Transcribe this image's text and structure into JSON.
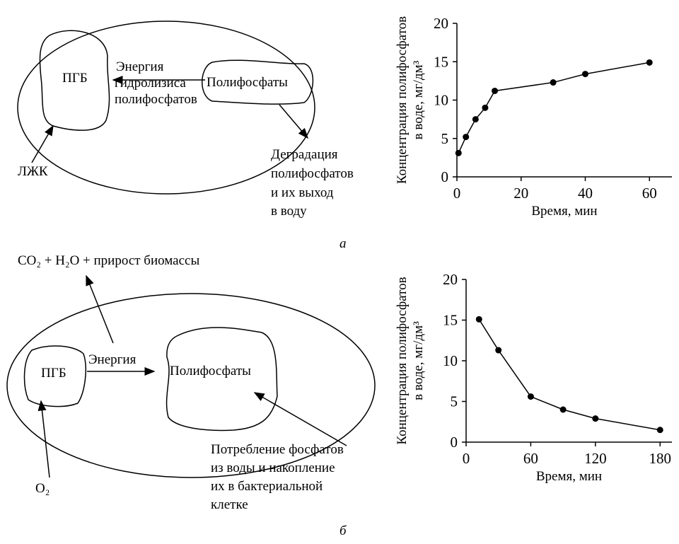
{
  "chart_data": [
    {
      "type": "line",
      "ylabel": [
        "Концентрация полифосфатов",
        "в воде, мг/дм³"
      ],
      "xlabel": "Время, мин",
      "x": [
        0.5,
        2.8,
        5.8,
        8.8,
        11.8,
        30,
        40,
        60
      ],
      "values": [
        3.1,
        5.2,
        7.5,
        9.0,
        11.2,
        12.3,
        13.4,
        14.9
      ],
      "xlim": [
        0,
        67
      ],
      "ylim": [
        0,
        20
      ],
      "xticks": [
        0,
        20,
        40,
        60
      ],
      "yticks": [
        0,
        5,
        10,
        15,
        20
      ],
      "color": "#000000"
    },
    {
      "type": "line",
      "ylabel": [
        "Концентрация полифосфатов",
        "в воде, мг/дм³"
      ],
      "xlabel": "Время, мин",
      "x": [
        12,
        30,
        60,
        90,
        120,
        180
      ],
      "values": [
        15.1,
        11.3,
        5.6,
        4.0,
        2.9,
        1.5
      ],
      "xlim": [
        0,
        191
      ],
      "ylim": [
        0,
        20
      ],
      "xticks": [
        0,
        60,
        120,
        180
      ],
      "yticks": [
        0,
        5,
        10,
        15,
        20
      ],
      "color": "#000000"
    }
  ],
  "diagram_a": {
    "pgb": "ПГБ",
    "energy": [
      "Энергия",
      "гидролизиса",
      "полифосфатов"
    ],
    "polyphosphates": "Полифосфаты",
    "degradation": [
      "Деградация",
      "полифосфатов",
      "и их выход",
      "в воду"
    ],
    "vfa": "ЛЖК",
    "caption": "а"
  },
  "diagram_b": {
    "products": "CO₂ + H₂O + прирост биомассы",
    "pgb": "ПГБ",
    "energy": "Энергия",
    "polyphosphates": "Полифосфаты",
    "oxygen": "O₂",
    "uptake": [
      "Потребление фосфатов",
      "из воды и накопление",
      "их в бактериальной",
      "клетке"
    ],
    "caption": "б"
  }
}
